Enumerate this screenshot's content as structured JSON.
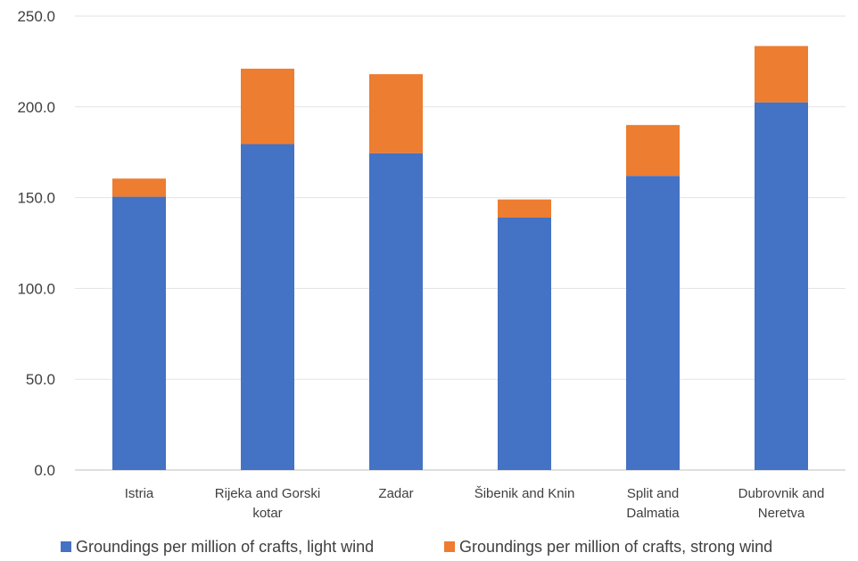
{
  "chart_data": {
    "type": "bar",
    "stacked": true,
    "categories": [
      [
        "Istria"
      ],
      [
        "Rijeka and Gorski",
        "kotar"
      ],
      [
        "Zadar"
      ],
      [
        "Šibenik and Knin"
      ],
      [
        "Split and",
        "Dalmatia"
      ],
      [
        "Dubrovnik and",
        "Neretva"
      ]
    ],
    "series": [
      {
        "name": "Groundings per million of crafts, light wind",
        "color": "#4472C4",
        "values": [
          150.5,
          179.5,
          174.5,
          139.0,
          162.0,
          202.5
        ]
      },
      {
        "name": "Groundings per million of crafts, strong wind",
        "color": "#ED7D31",
        "values": [
          10.0,
          41.5,
          43.5,
          10.0,
          28.0,
          31.0
        ]
      }
    ],
    "yticks": [
      "0.0",
      "50.0",
      "100.0",
      "150.0",
      "200.0",
      "250.0"
    ],
    "ylim": [
      0,
      250
    ],
    "grid": true,
    "legend_position": "bottom"
  }
}
